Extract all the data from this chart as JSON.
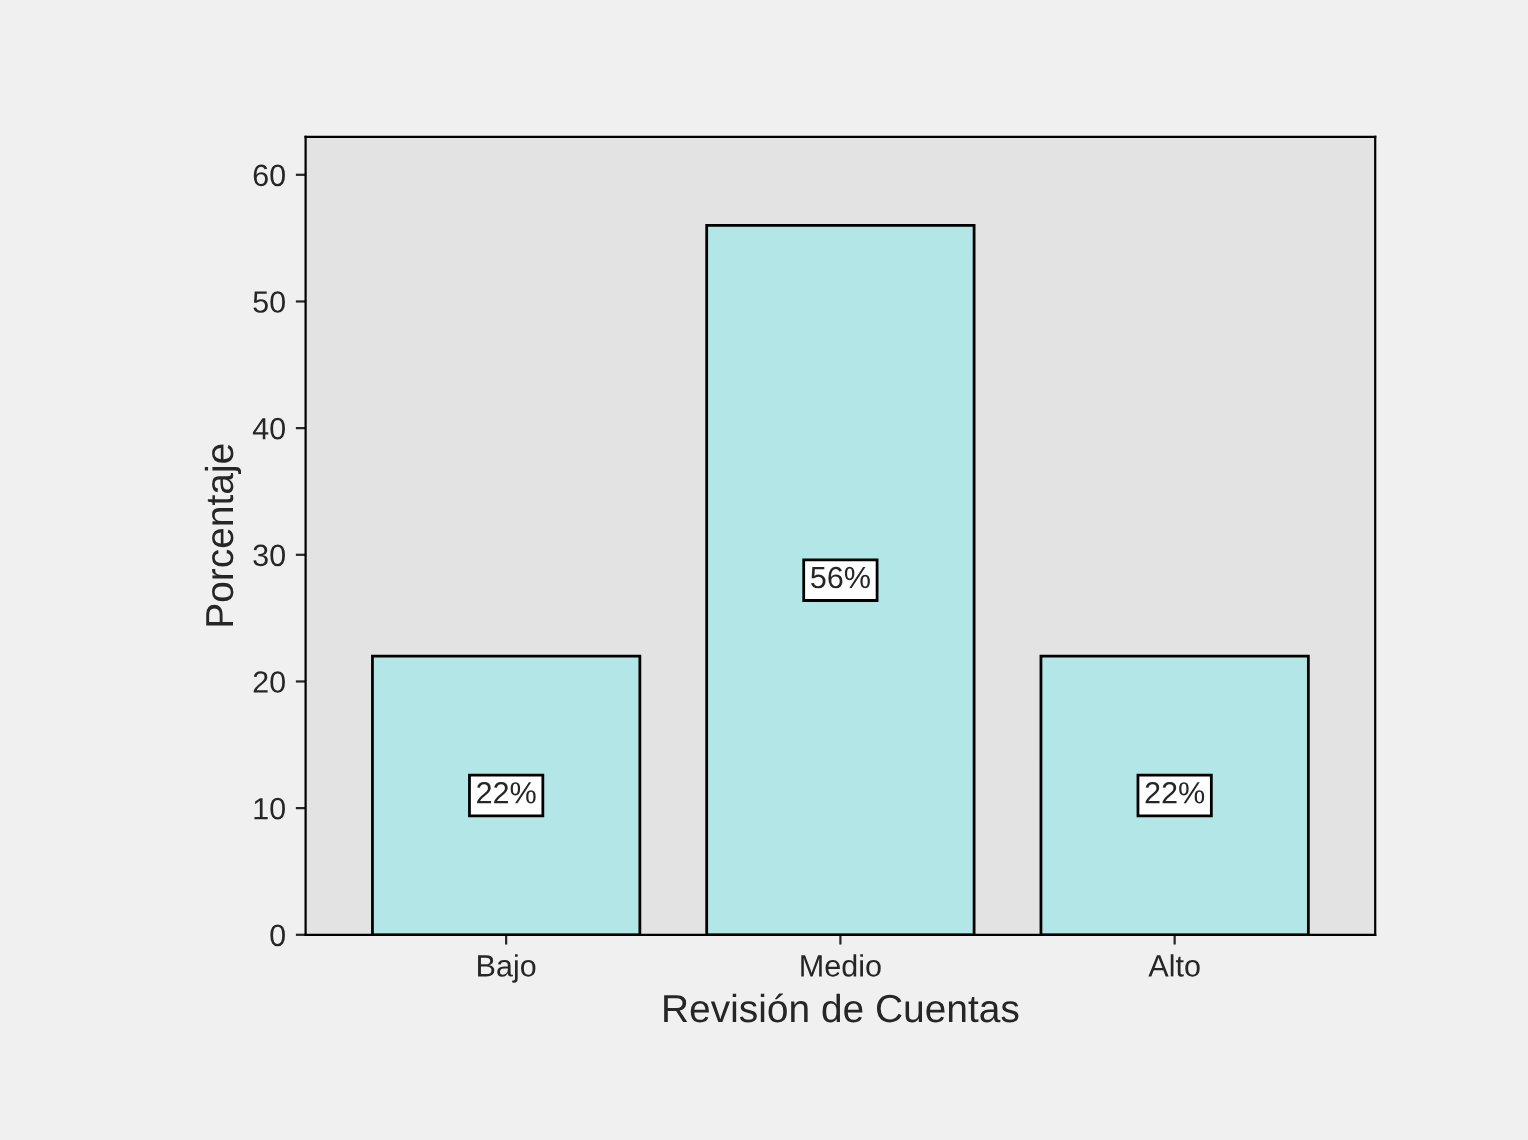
{
  "chart_data": {
    "type": "bar",
    "xlabel": "Revisión de Cuentas",
    "ylabel": "Porcentaje",
    "categories": [
      "Bajo",
      "Medio",
      "Alto"
    ],
    "values": [
      22,
      56,
      22
    ],
    "value_labels": [
      "22%",
      "56%",
      "22%"
    ],
    "color": "#b3e6e6",
    "ylim": [
      0,
      63
    ],
    "yticks": [
      0,
      10,
      20,
      30,
      40,
      50,
      60
    ],
    "grid": false
  }
}
